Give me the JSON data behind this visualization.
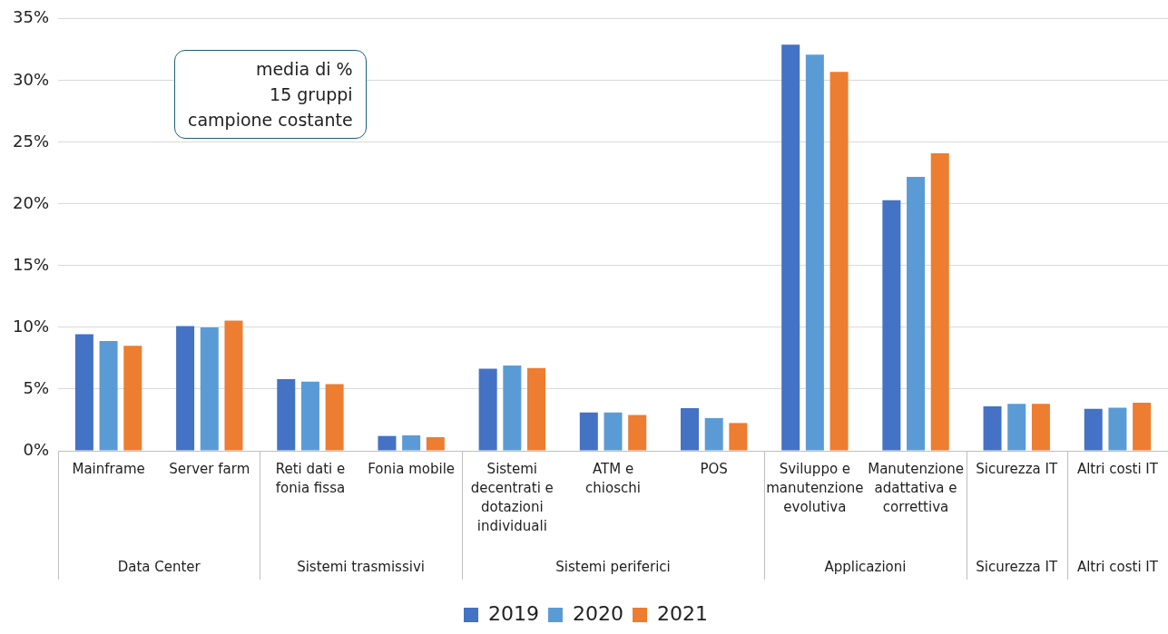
{
  "chart_data": {
    "type": "bar",
    "categories": [
      "Mainframe",
      "Server farm",
      "Reti dati e fonia fissa",
      "Fonia mobile",
      "Sistemi decentrati e dotazioni individuali",
      "ATM e chioschi",
      "POS",
      "Sviluppo e manutenzione evolutiva",
      "Manutenzione adattativa e correttiva",
      "Sicurezza IT",
      "Altri costi IT"
    ],
    "series": [
      {
        "name": "2019",
        "color": "#4472c4",
        "values": [
          9.45,
          10.1,
          5.8,
          1.2,
          6.65,
          3.1,
          3.45,
          32.9,
          20.3,
          3.6,
          3.4
        ]
      },
      {
        "name": "2020",
        "color": "#5b9bd5",
        "values": [
          8.9,
          10.0,
          5.6,
          1.25,
          6.9,
          3.1,
          2.65,
          32.1,
          22.2,
          3.8,
          3.5
        ]
      },
      {
        "name": "2021",
        "color": "#ed7d31",
        "values": [
          8.5,
          10.55,
          5.4,
          1.1,
          6.7,
          2.9,
          2.25,
          30.7,
          24.1,
          3.8,
          3.9
        ]
      }
    ],
    "ylim": [
      0,
      35
    ],
    "yticks": [
      {
        "value": 0,
        "label": "0%"
      },
      {
        "value": 5,
        "label": "5%"
      },
      {
        "value": 10,
        "label": "10%"
      },
      {
        "value": 15,
        "label": "15%"
      },
      {
        "value": 20,
        "label": "20%"
      },
      {
        "value": 25,
        "label": "25%"
      },
      {
        "value": 30,
        "label": "30%"
      },
      {
        "value": 35,
        "label": "35%"
      }
    ],
    "grid": "y",
    "legend": "bottom",
    "annotations": [
      "media di %\n15 gruppi\ncampione costante",
      "Data Center",
      "Sistemi trasmissivi",
      "Sistemi periferici",
      "Applicazioni",
      "Sicurezza IT",
      "Altri costi IT"
    ]
  }
}
